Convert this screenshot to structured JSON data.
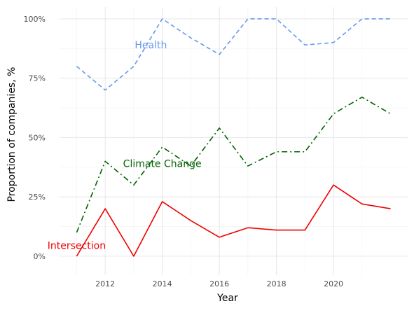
{
  "chart_data": {
    "type": "line",
    "title": "",
    "xlabel": "Year",
    "ylabel": "Proportion of companies, %",
    "x": [
      2011,
      2012,
      2013,
      2014,
      2015,
      2016,
      2017,
      2018,
      2019,
      2020,
      2021,
      2022
    ],
    "xlim": [
      2010.4,
      2022.6
    ],
    "ylim": [
      -8,
      105
    ],
    "x_ticks": [
      2012,
      2014,
      2016,
      2018,
      2020
    ],
    "x_tick_labels": [
      "2012",
      "2014",
      "2016",
      "2018",
      "2020"
    ],
    "y_ticks": [
      0,
      25,
      50,
      75,
      100
    ],
    "y_tick_labels": [
      "0%",
      "25%",
      "50%",
      "75%",
      "100%"
    ],
    "grid": true,
    "legend": "none",
    "series": [
      {
        "name": "Health",
        "color": "#6699ee",
        "dash": "dashed",
        "values": [
          80,
          70,
          80,
          100,
          92,
          85,
          100,
          100,
          89,
          90,
          100,
          100
        ],
        "label_at": [
          2013.6,
          89
        ]
      },
      {
        "name": "Climate Change",
        "color": "#006400",
        "dash": "dashdot",
        "values": [
          10,
          40,
          30,
          46,
          38,
          54,
          38,
          44,
          44,
          60,
          67,
          60
        ],
        "label_at": [
          2014.0,
          39
        ]
      },
      {
        "name": "Intersection",
        "color": "#ee0000",
        "dash": "solid",
        "values": [
          0,
          20,
          0,
          23,
          15,
          8,
          12,
          11,
          11,
          30,
          22,
          20
        ],
        "label_at": [
          2011.0,
          4.5
        ]
      }
    ]
  }
}
